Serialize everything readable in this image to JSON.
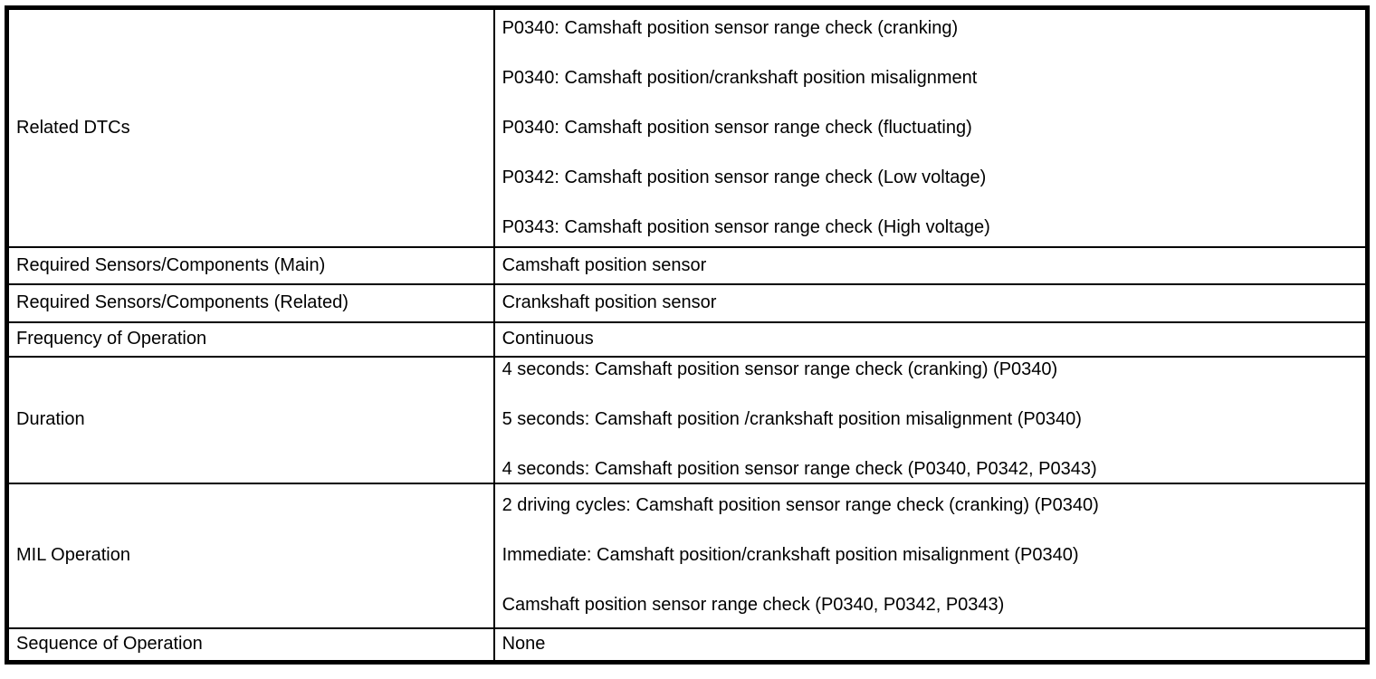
{
  "table": {
    "colors": {
      "border": "#000000",
      "background": "#ffffff",
      "text": "#000000"
    },
    "rows": [
      {
        "label": "Related DTCs",
        "values": [
          "P0340: Camshaft position sensor range check (cranking)",
          "P0340: Camshaft position/crankshaft position misalignment",
          "P0340: Camshaft position sensor range check (fluctuating)",
          "P0342: Camshaft position sensor range check (Low voltage)",
          "P0343: Camshaft position sensor range check (High voltage)"
        ]
      },
      {
        "label": "Required Sensors/Components (Main)",
        "values": [
          "Camshaft position sensor"
        ]
      },
      {
        "label": "Required Sensors/Components (Related)",
        "values": [
          "Crankshaft position sensor"
        ]
      },
      {
        "label": "Frequency of Operation",
        "values": [
          "Continuous"
        ]
      },
      {
        "label": "Duration",
        "values": [
          "4 seconds: Camshaft position sensor range check (cranking) (P0340)",
          "5 seconds: Camshaft position /crankshaft position misalignment (P0340)",
          "4 seconds: Camshaft position sensor range check (P0340, P0342, P0343)"
        ]
      },
      {
        "label": "MIL Operation",
        "values": [
          "2 driving cycles: Camshaft position sensor range check (cranking) (P0340)",
          "Immediate: Camshaft position/crankshaft position misalignment (P0340)",
          "Camshaft position sensor range check (P0340, P0342, P0343)"
        ]
      },
      {
        "label": "Sequence of Operation",
        "values": [
          "None"
        ]
      }
    ]
  }
}
